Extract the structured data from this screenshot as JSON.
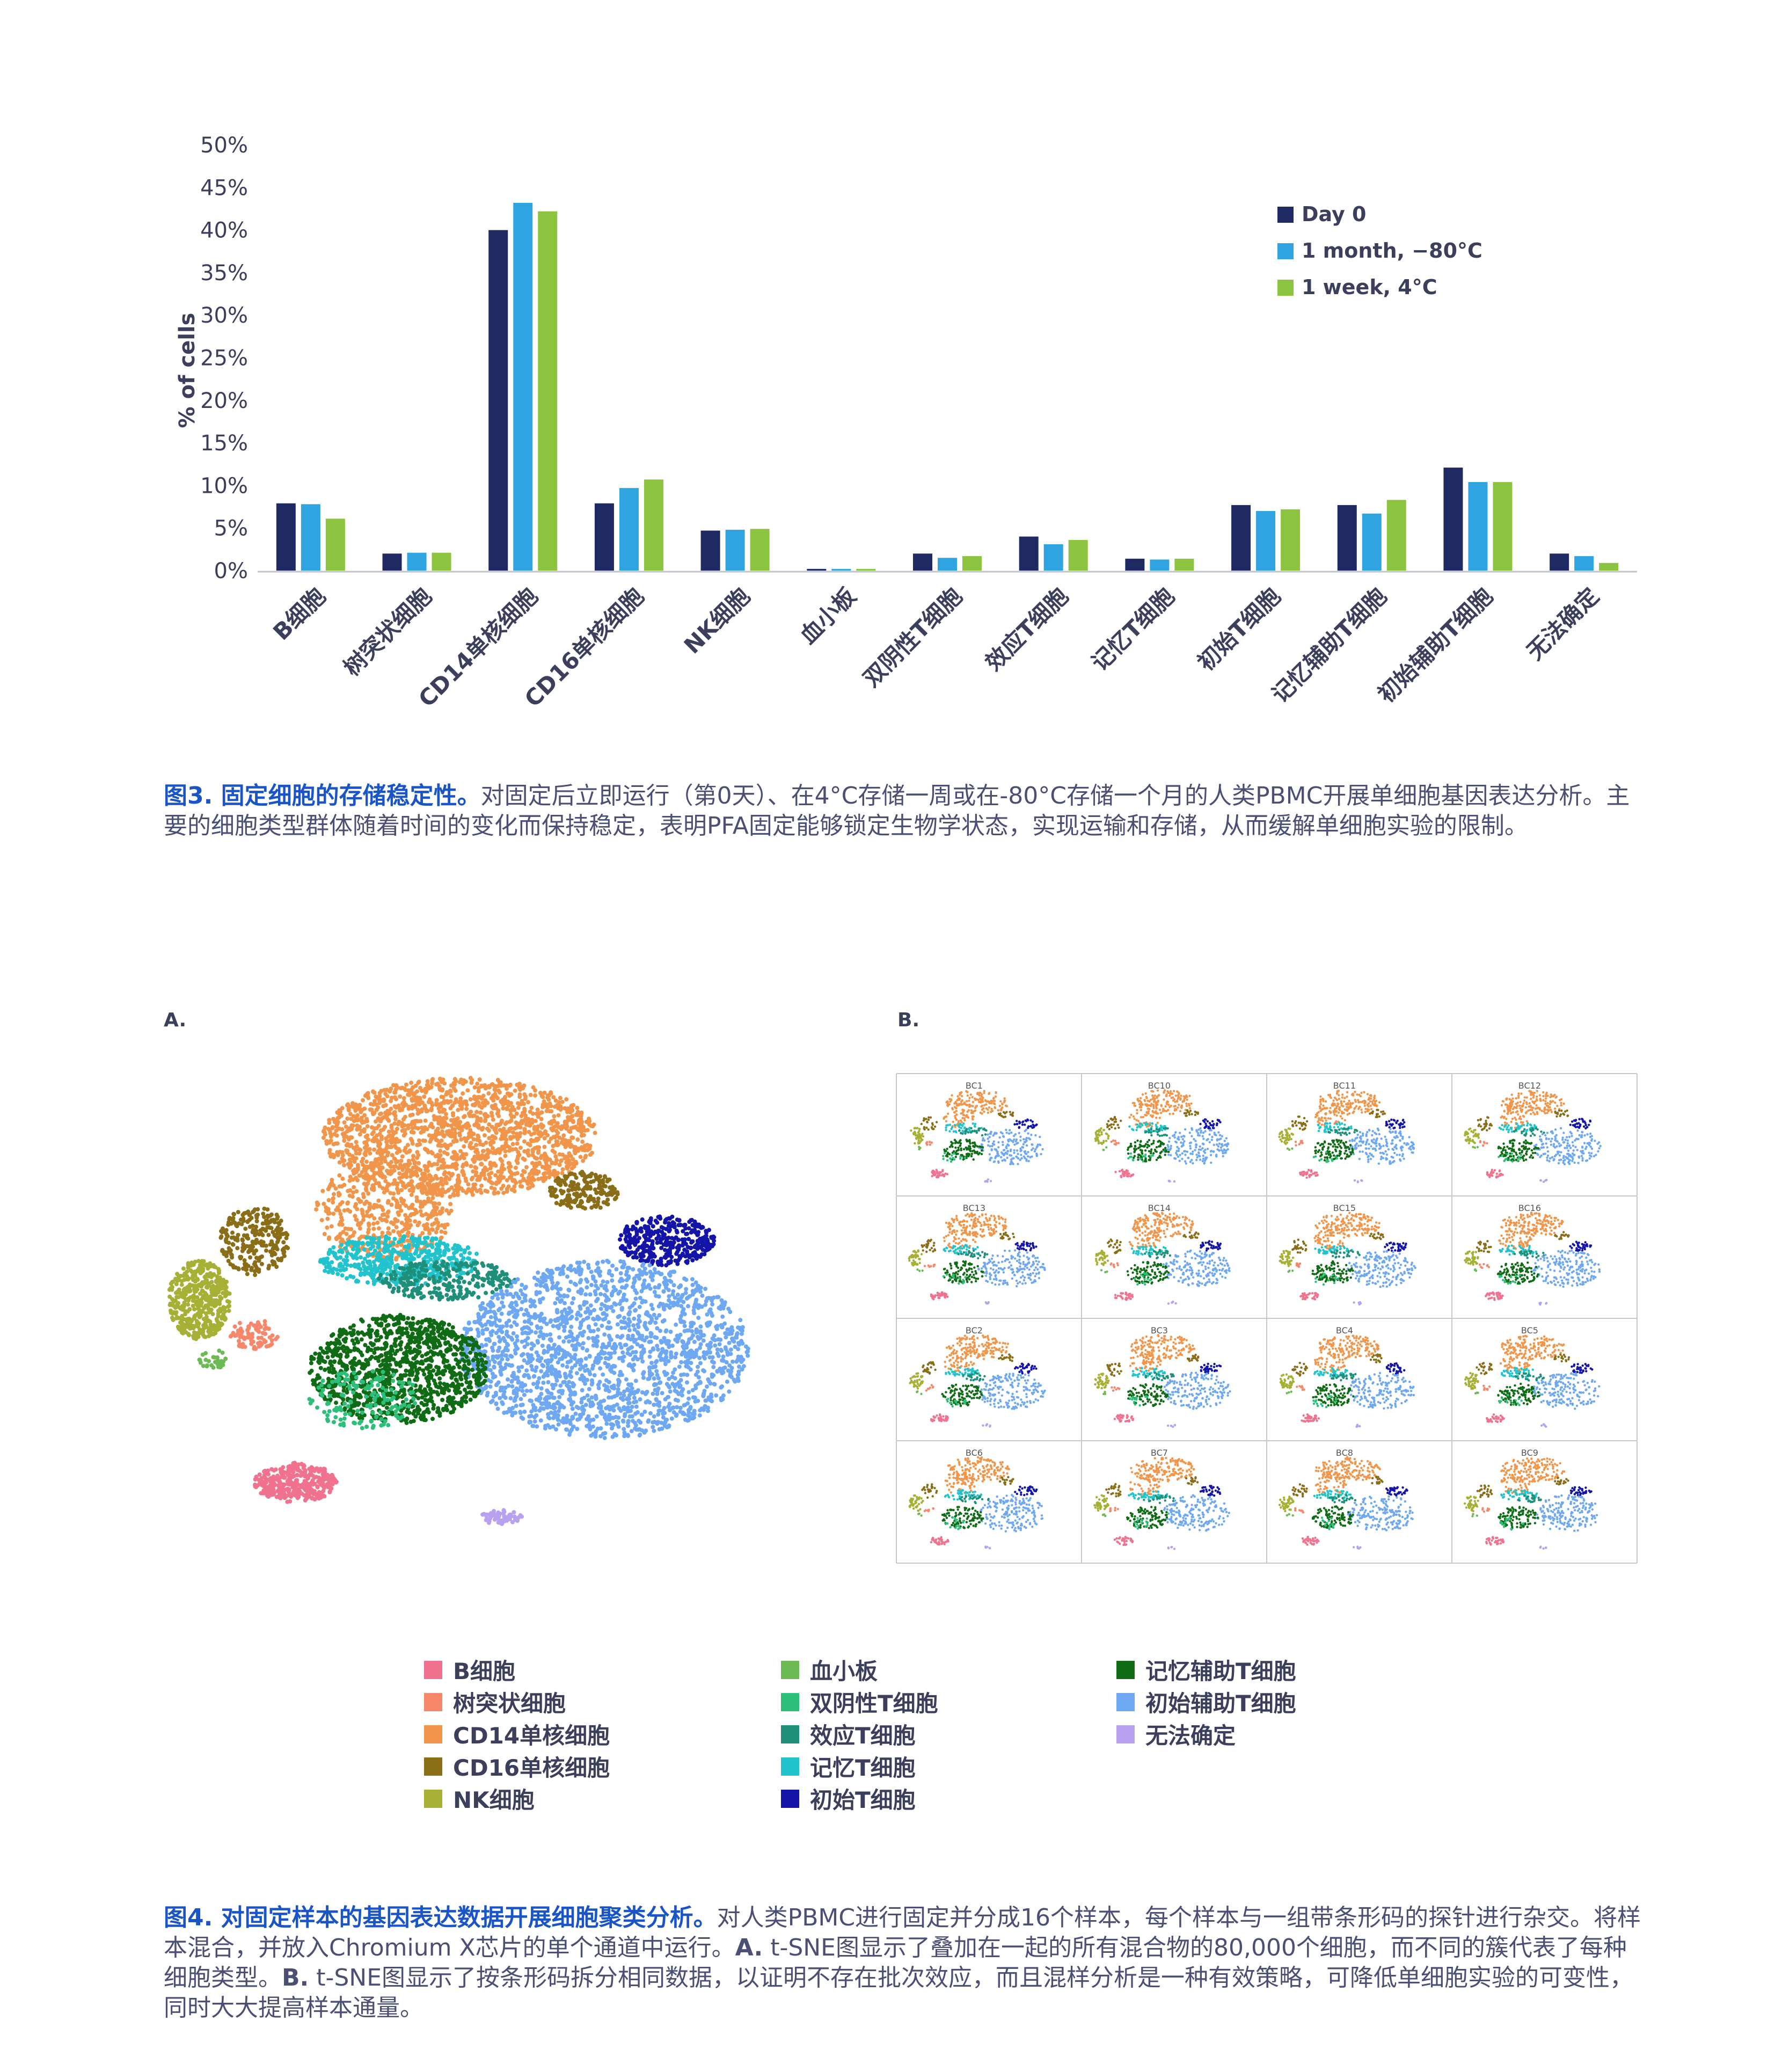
{
  "figure3": {
    "chart_data": {
      "type": "bar",
      "title": "",
      "xlabel": "",
      "ylabel": "% of cells",
      "ylim": [
        0,
        50
      ],
      "yticks": [
        "0%",
        "5%",
        "10%",
        "15%",
        "20%",
        "25%",
        "30%",
        "35%",
        "40%",
        "45%",
        "50%"
      ],
      "grid": false,
      "legend_position": "top-right",
      "categories": [
        "B细胞",
        "树突状细胞",
        "CD14单核细胞",
        "CD16单核细胞",
        "NK细胞",
        "血小板",
        "双阴性T细胞",
        "效应T细胞",
        "记忆T细胞",
        "初始T细胞",
        "记忆辅助T细胞",
        "初始辅助T细胞",
        "无法确定"
      ],
      "series": [
        {
          "name": "Day 0",
          "color": "#1f2a63",
          "values": [
            7.9,
            2.0,
            40.0,
            7.9,
            4.7,
            0.2,
            2.0,
            4.0,
            1.4,
            7.7,
            7.7,
            12.1,
            2.0
          ]
        },
        {
          "name": "1 month, −80°C",
          "color": "#2fa4e0",
          "values": [
            7.8,
            2.1,
            43.2,
            9.7,
            4.8,
            0.2,
            1.5,
            3.1,
            1.3,
            7.0,
            6.7,
            10.4,
            1.7
          ]
        },
        {
          "name": "1 week, 4°C",
          "color": "#8cc43f",
          "values": [
            6.1,
            2.1,
            42.2,
            10.7,
            4.9,
            0.2,
            1.7,
            3.6,
            1.4,
            7.2,
            8.3,
            10.4,
            0.9
          ]
        }
      ]
    },
    "caption_lead": "图3. 固定细胞的存储稳定性。",
    "caption_body": "对固定后立即运行（第0天）、在4°C存储一周或在-80°C存储一个月的人类PBMC开展单细胞基因表达分析。主要的细胞类型群体随着时间的变化而保持稳定，表明PFA固定能够锁定生物学状态，实现运输和存储，从而缓解单细胞实验的限制。"
  },
  "figure4": {
    "panel_a_label": "A.",
    "panel_b_label": "B.",
    "grid_labels": [
      "BC1",
      "BC10",
      "BC11",
      "BC12",
      "BC13",
      "BC14",
      "BC15",
      "BC16",
      "BC2",
      "BC3",
      "BC4",
      "BC5",
      "BC6",
      "BC7",
      "BC8",
      "BC9"
    ],
    "legend": [
      {
        "label": "B细胞",
        "color": "#f0728f"
      },
      {
        "label": "树突状细胞",
        "color": "#f7876a"
      },
      {
        "label": "CD14单核细胞",
        "color": "#f0954a"
      },
      {
        "label": "CD16单核细胞",
        "color": "#8a6d17"
      },
      {
        "label": "NK细胞",
        "color": "#a6b034"
      },
      {
        "label": "血小板",
        "color": "#6cba54"
      },
      {
        "label": "双阴性T细胞",
        "color": "#2bbf7a"
      },
      {
        "label": "效应T细胞",
        "color": "#1e8f78"
      },
      {
        "label": "记忆T细胞",
        "color": "#21c3cc"
      },
      {
        "label": "初始T细胞",
        "color": "#1414a8"
      },
      {
        "label": "记忆辅助T细胞",
        "color": "#0f6b14"
      },
      {
        "label": "初始辅助T细胞",
        "color": "#6ea8f2"
      },
      {
        "label": "无法确定",
        "color": "#b8a2f0"
      }
    ],
    "caption_lead": "图4. 对固定样本的基因表达数据开展细胞聚类分析。",
    "caption_body1": "对人类PBMC进行固定并分成16个样本，每个样本与一组带条形码的探针进行杂交。将样本混合，并放入Chromium X芯片的单个通道中运行。",
    "caption_a": "A.",
    "caption_body2": " t-SNE图显示了叠加在一起的所有混合物的80,000个细胞，而不同的簇代表了每种细胞类型。",
    "caption_b": "B.",
    "caption_body3": " t-SNE图显示了按条形码拆分相同数据，以证明不存在批次效应，而且混样分析是一种有效策略，可降低单细胞实验的可变性，同时大大提高样本通量。"
  }
}
